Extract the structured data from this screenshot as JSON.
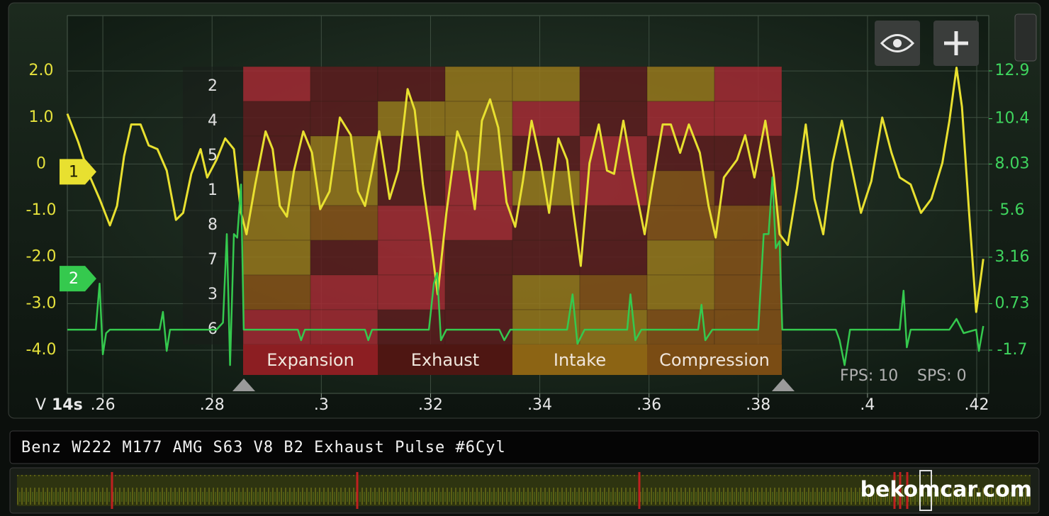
{
  "chart_data": {
    "type": "line",
    "x_prefix": "V",
    "x_time": "14s",
    "xlim": [
      0.2535,
      0.4222
    ],
    "xticks": [
      {
        "value": 0.26,
        "label": ".26"
      },
      {
        "value": 0.28,
        "label": ".28"
      },
      {
        "value": 0.3,
        "label": ".3"
      },
      {
        "value": 0.32,
        "label": ".32"
      },
      {
        "value": 0.34,
        "label": ".34"
      },
      {
        "value": 0.36,
        "label": ".36"
      },
      {
        "value": 0.38,
        "label": ".38"
      },
      {
        "value": 0.4,
        "label": ".4"
      },
      {
        "value": 0.42,
        "label": ".42"
      }
    ],
    "ylim": [
      -4.93,
      3.19
    ],
    "yticks": [
      {
        "value": 2,
        "label": "2.0"
      },
      {
        "value": 1,
        "label": "1.0"
      },
      0,
      {
        "value": -1,
        "label": "-1.0"
      },
      {
        "value": -2,
        "label": "-2.0"
      },
      {
        "value": -3,
        "label": "-3.0"
      },
      {
        "value": -4,
        "label": "-4.0"
      }
    ],
    "y2lim": [
      -3.96,
      15.79
    ],
    "y2ticks": [
      12.9,
      10.4,
      8.03,
      5.6,
      3.16,
      0.73,
      -1.7
    ],
    "grid": true,
    "series": [
      {
        "name": "1",
        "color": "#e8e030",
        "x": [
          0.2535,
          0.2555,
          0.2574,
          0.2594,
          0.2613,
          0.2626,
          0.2639,
          0.2652,
          0.2669,
          0.2684,
          0.27,
          0.2717,
          0.2734,
          0.2747,
          0.2762,
          0.2779,
          0.2791,
          0.2808,
          0.2824,
          0.284,
          0.2853,
          0.2863,
          0.2879,
          0.2898,
          0.2911,
          0.2924,
          0.2937,
          0.295,
          0.2967,
          0.2983,
          0.2998,
          0.3015,
          0.3034,
          0.3054,
          0.3067,
          0.308,
          0.3093,
          0.3106,
          0.3125,
          0.3141,
          0.3158,
          0.3171,
          0.3186,
          0.3199,
          0.3213,
          0.3229,
          0.3249,
          0.3265,
          0.3281,
          0.3294,
          0.3309,
          0.3324,
          0.3339,
          0.3355,
          0.3369,
          0.3385,
          0.3402,
          0.3417,
          0.3434,
          0.345,
          0.3462,
          0.3475,
          0.3491,
          0.3508,
          0.3523,
          0.3536,
          0.3553,
          0.357,
          0.3592,
          0.3605,
          0.3625,
          0.364,
          0.3657,
          0.3673,
          0.3693,
          0.3709,
          0.3722,
          0.3737,
          0.3761,
          0.3776,
          0.3793,
          0.3813,
          0.3828,
          0.3839,
          0.3854,
          0.3871,
          0.3887,
          0.3903,
          0.3919,
          0.3936,
          0.3953,
          0.3968,
          0.3988,
          0.4007,
          0.4027,
          0.4044,
          0.4059,
          0.4079,
          0.4098,
          0.4117,
          0.4137,
          0.415,
          0.4163,
          0.4173,
          0.4186,
          0.4199,
          0.4212
        ],
        "values": [
          1.08,
          0.47,
          -0.21,
          -0.75,
          -1.32,
          -0.9,
          0.17,
          0.85,
          0.85,
          0.4,
          0.32,
          -0.14,
          -1.2,
          -1.05,
          -0.21,
          0.32,
          -0.29,
          0.09,
          0.55,
          0.32,
          -1.05,
          -1.51,
          -0.44,
          0.7,
          0.32,
          -0.9,
          -1.13,
          -0.14,
          0.7,
          0.24,
          -0.97,
          -0.59,
          1.0,
          0.62,
          -0.59,
          -0.9,
          -0.14,
          0.7,
          -0.75,
          -0.14,
          1.61,
          1.16,
          -0.44,
          -1.51,
          -2.8,
          -1.05,
          0.7,
          0.24,
          -0.97,
          0.93,
          1.39,
          0.78,
          -0.82,
          -1.35,
          -0.37,
          0.93,
          0.02,
          -1.05,
          0.55,
          0.09,
          -1.05,
          -2.19,
          0.02,
          0.85,
          -0.14,
          -0.21,
          0.93,
          -0.21,
          -1.51,
          -0.52,
          0.85,
          0.85,
          0.24,
          0.85,
          0.24,
          -0.9,
          -1.58,
          -0.29,
          0.09,
          0.62,
          -0.29,
          0.93,
          -0.21,
          -1.51,
          -1.74,
          -0.52,
          0.85,
          -0.75,
          -1.51,
          0.02,
          0.93,
          0.09,
          -1.05,
          -0.37,
          1.0,
          0.24,
          -0.29,
          -0.44,
          -1.05,
          -0.75,
          0.02,
          0.93,
          2.07,
          1.23,
          -1.05,
          -3.18,
          -2.04
        ]
      },
      {
        "name": "2",
        "color": "#35c94e",
        "axis": "y2",
        "x": [
          0.2535,
          0.2587,
          0.2594,
          0.26,
          0.2606,
          0.2613,
          0.2704,
          0.271,
          0.2717,
          0.2723,
          0.2808,
          0.282,
          0.2827,
          0.2833,
          0.284,
          0.2846,
          0.2853,
          0.2858,
          0.2957,
          0.2963,
          0.297,
          0.308,
          0.3086,
          0.3093,
          0.3197,
          0.3206,
          0.3212,
          0.3219,
          0.3229,
          0.3326,
          0.3335,
          0.3346,
          0.345,
          0.346,
          0.3469,
          0.3482,
          0.356,
          0.3566,
          0.3575,
          0.3586,
          0.369,
          0.3696,
          0.3703,
          0.3716,
          0.38,
          0.381,
          0.3819,
          0.3826,
          0.3832,
          0.3839,
          0.3844,
          0.3942,
          0.3949,
          0.3958,
          0.3968,
          0.4059,
          0.4066,
          0.4072,
          0.4079,
          0.415,
          0.4163,
          0.4176,
          0.4199,
          0.4204,
          0.4212
        ],
        "values": [
          -0.63,
          -0.63,
          1.78,
          -1.92,
          -0.81,
          -0.63,
          -0.63,
          0.3,
          -1.74,
          -0.63,
          -0.63,
          -0.26,
          4.37,
          -2.48,
          4.37,
          4.18,
          6.96,
          -0.63,
          -0.63,
          -1.18,
          -0.63,
          -0.63,
          -1.18,
          -0.63,
          -0.63,
          1.78,
          2.33,
          -1.18,
          -0.63,
          -0.63,
          -1.18,
          -0.63,
          -0.63,
          1.22,
          -1.37,
          -0.63,
          -0.63,
          1.22,
          -1.18,
          -0.63,
          -0.63,
          0.67,
          -1.18,
          -0.63,
          -0.63,
          4.37,
          4.37,
          7.33,
          3.63,
          4.0,
          -0.63,
          -0.63,
          -1.18,
          -2.48,
          -0.63,
          -0.63,
          1.41,
          -1.55,
          -0.63,
          -0.63,
          -0.07,
          -0.81,
          -0.63,
          -1.74,
          -0.44
        ]
      }
    ]
  },
  "overlay": {
    "row_labels": [
      "2",
      "4",
      "5",
      "1",
      "8",
      "7",
      "3",
      "6"
    ],
    "cell_colors": [
      [
        "#a82a34",
        "#5e1c1e",
        "#5e1c1e",
        "#9a7a1c",
        "#9a7a1c",
        "#5e1c1e",
        "#9a7a1c",
        "#a82a34"
      ],
      [
        "#5e1c1e",
        "#5e1c1e",
        "#9a7a1c",
        "#9a7a1c",
        "#a82a34",
        "#5e1c1e",
        "#a82a34",
        "#a82a34"
      ],
      [
        "#5e1c1e",
        "#9a7a1c",
        "#5e1c1e",
        "#9a7a1c",
        "#5e1c1e",
        "#a82a34",
        "#5e1c1e",
        "#5e1c1e"
      ],
      [
        "#9a7a1c",
        "#9a7a1c",
        "#5e1c1e",
        "#a82a34",
        "#9a7a1c",
        "#a82a34",
        "#8a5418",
        "#5e1c1e"
      ],
      [
        "#9a7a1c",
        "#8a5418",
        "#a82a34",
        "#a82a34",
        "#5e1c1e",
        "#5e1c1e",
        "#8a5418",
        "#8a5418"
      ],
      [
        "#9a7a1c",
        "#5e1c1e",
        "#a82a34",
        "#5e1c1e",
        "#5e1c1e",
        "#5e1c1e",
        "#9a7a1c",
        "#8a5418"
      ],
      [
        "#8a5418",
        "#a82a34",
        "#a82a34",
        "#5e1c1e",
        "#9a7a1c",
        "#8a5418",
        "#9a7a1c",
        "#8a5418"
      ],
      [
        "#a82a34",
        "#a82a34",
        "#5e1c1e",
        "#5e1c1e",
        "#9a7a1c",
        "#9a7a1c",
        "#8a5418",
        "#8a5418"
      ]
    ],
    "phases": [
      {
        "label": "Expansion",
        "color": "#8c1e22"
      },
      {
        "label": "Exhaust",
        "color": "#4e1612"
      },
      {
        "label": "Intake",
        "color": "#8c6414"
      },
      {
        "label": "Compression",
        "color": "#7a4c14"
      }
    ]
  },
  "status": {
    "fps": "FPS: 10",
    "sps": "SPS: 0"
  },
  "capture_title": "Benz W222 M177 AMG S63 V8 B2 Exhaust Pulse #6Cyl",
  "watermark": "bekomcar.com"
}
